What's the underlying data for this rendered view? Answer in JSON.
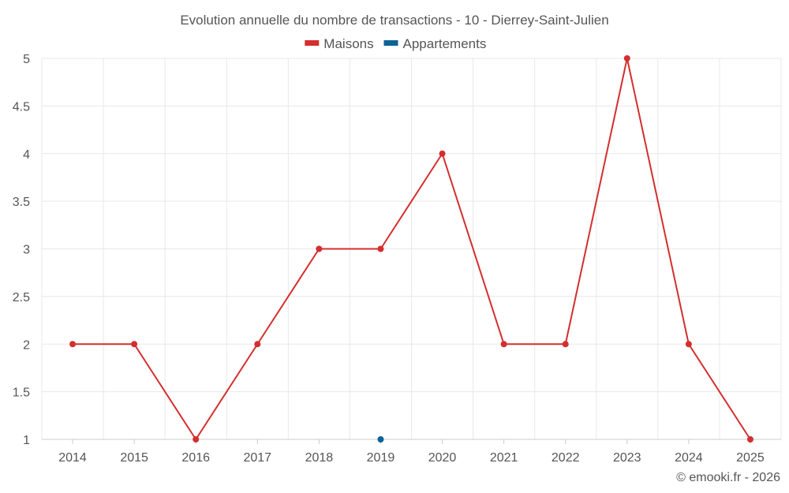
{
  "chart_data": {
    "type": "line",
    "title": "Evolution annuelle du nombre de transactions - 10 - Dierrey-Saint-Julien",
    "categories": [
      "2014",
      "2015",
      "2016",
      "2017",
      "2018",
      "2019",
      "2020",
      "2021",
      "2022",
      "2023",
      "2024",
      "2025"
    ],
    "y_ticks": [
      "1",
      "1.5",
      "2",
      "2.5",
      "3",
      "3.5",
      "4",
      "4.5",
      "5"
    ],
    "ylim": [
      1,
      5
    ],
    "grid": true,
    "legend_position": "top-center",
    "series": [
      {
        "name": "Maisons",
        "color": "#d32f2f",
        "values": [
          2,
          2,
          1,
          2,
          3,
          3,
          4,
          2,
          2,
          5,
          2,
          1
        ]
      },
      {
        "name": "Appartements",
        "color": "#0b6396",
        "values": [
          null,
          null,
          null,
          null,
          null,
          1,
          null,
          null,
          null,
          null,
          null,
          null
        ]
      }
    ]
  },
  "credit": "© emooki.fr - 2026"
}
